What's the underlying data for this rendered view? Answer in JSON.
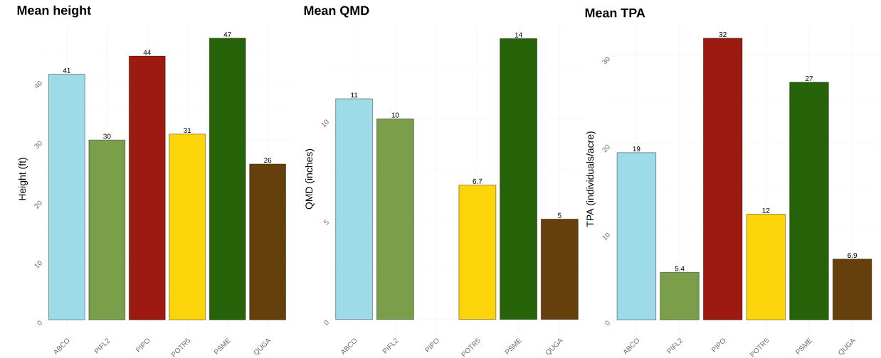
{
  "chart_data": [
    {
      "type": "bar",
      "title": "Mean height",
      "ylabel": "Height (ft)",
      "categories": [
        "ABCO",
        "PIFL2",
        "PIPO",
        "POTR5",
        "PSME",
        "QUGA"
      ],
      "values": [
        41,
        30,
        44,
        31,
        47,
        26
      ],
      "colors": [
        "#9ddbe8",
        "#7a9e4a",
        "#9c1a10",
        "#fbd50a",
        "#276309",
        "#66400c"
      ],
      "ylim": [
        -2.35,
        49.35
      ],
      "yticks": [
        0,
        10,
        20,
        30,
        40
      ],
      "grid": true,
      "data_labels": true
    },
    {
      "type": "bar",
      "title": "Mean QMD",
      "ylabel": "QMD (inches)",
      "categories": [
        "ABCO",
        "PIFL2",
        "PIPO",
        "POTR5",
        "PSME",
        "QUGA"
      ],
      "values": [
        11,
        10,
        null,
        6.7,
        14,
        5
      ],
      "colors": [
        "#9ddbe8",
        "#7a9e4a",
        "#9c1a10",
        "#fbd50a",
        "#276309",
        "#66400c"
      ],
      "ylim": [
        -0.72,
        14.72
      ],
      "yticks": [
        0,
        5,
        10
      ],
      "grid": true,
      "data_labels": true
    },
    {
      "type": "bar",
      "title": "Mean TPA",
      "ylabel": "TPA (individuals/acre)",
      "categories": [
        "ABCO",
        "PIFL2",
        "PIPO",
        "POTR5",
        "PSME",
        "QUGA"
      ],
      "values": [
        19,
        5.4,
        32,
        12,
        27,
        6.9
      ],
      "colors": [
        "#9ddbe8",
        "#7a9e4a",
        "#9c1a10",
        "#fbd50a",
        "#276309",
        "#66400c"
      ],
      "ylim": [
        -1.6,
        33.6
      ],
      "yticks": [
        0,
        10,
        20,
        30
      ],
      "grid": true,
      "data_labels": true
    }
  ]
}
